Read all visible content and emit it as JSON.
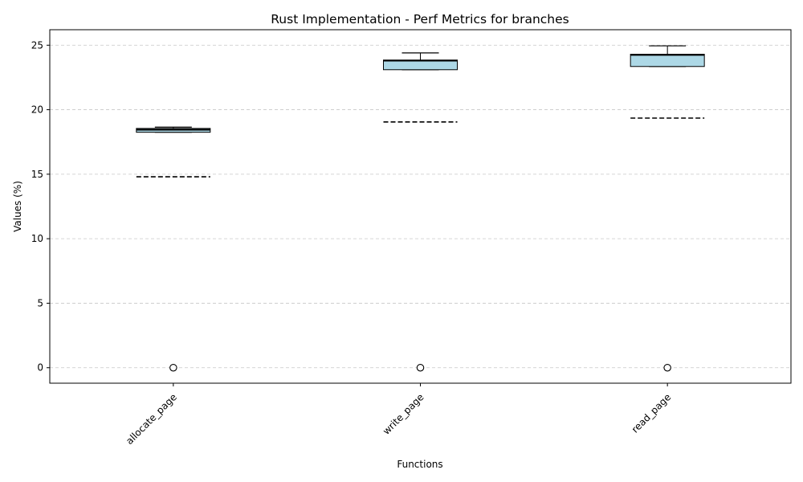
{
  "chart_data": {
    "type": "box",
    "title": "Rust Implementation - Perf Metrics for branches",
    "xlabel": "Functions",
    "ylabel": "Values (%)",
    "categories": [
      "allocate_page",
      "write_page",
      "read_page"
    ],
    "ylim": [
      -1.2,
      26.2
    ],
    "yticks": [
      0,
      5,
      10,
      15,
      20,
      25
    ],
    "grid": "y-dashed",
    "box_color": "#add8e6",
    "boxes": [
      {
        "category": "allocate_page",
        "q1": 18.25,
        "median": 18.45,
        "q3": 18.55,
        "whisker_low": 18.25,
        "whisker_high": 18.65,
        "mean": 14.8,
        "outliers": [
          0
        ]
      },
      {
        "category": "write_page",
        "q1": 23.1,
        "median": 23.8,
        "q3": 23.85,
        "whisker_low": 23.1,
        "whisker_high": 24.4,
        "mean": 19.05,
        "outliers": [
          0
        ]
      },
      {
        "category": "read_page",
        "q1": 23.35,
        "median": 24.25,
        "q3": 24.3,
        "whisker_low": 23.35,
        "whisker_high": 24.95,
        "mean": 19.35,
        "outliers": [
          0
        ]
      }
    ]
  }
}
